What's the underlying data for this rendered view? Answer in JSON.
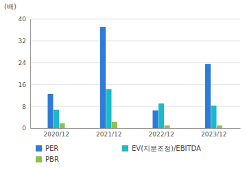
{
  "chart_data": {
    "type": "bar",
    "y_label": "(배)",
    "categories": [
      "2020/12",
      "2021/12",
      "2022/12",
      "2023/12"
    ],
    "series": [
      {
        "name": "PER",
        "color": "#2e7bd9",
        "values": [
          12.6,
          37.2,
          6.5,
          23.6
        ]
      },
      {
        "name": "EV(지분조정)/EBITDA",
        "color": "#1cb9c9",
        "values": [
          6.8,
          14.3,
          9.1,
          8.3
        ]
      },
      {
        "name": "PBR",
        "color": "#8cc14c",
        "values": [
          1.8,
          2.3,
          1.0,
          1.0
        ]
      }
    ],
    "ylim": [
      0,
      40
    ],
    "yticks": [
      0,
      8,
      16,
      24,
      32,
      40
    ],
    "grid": true,
    "legend": "bottom"
  }
}
